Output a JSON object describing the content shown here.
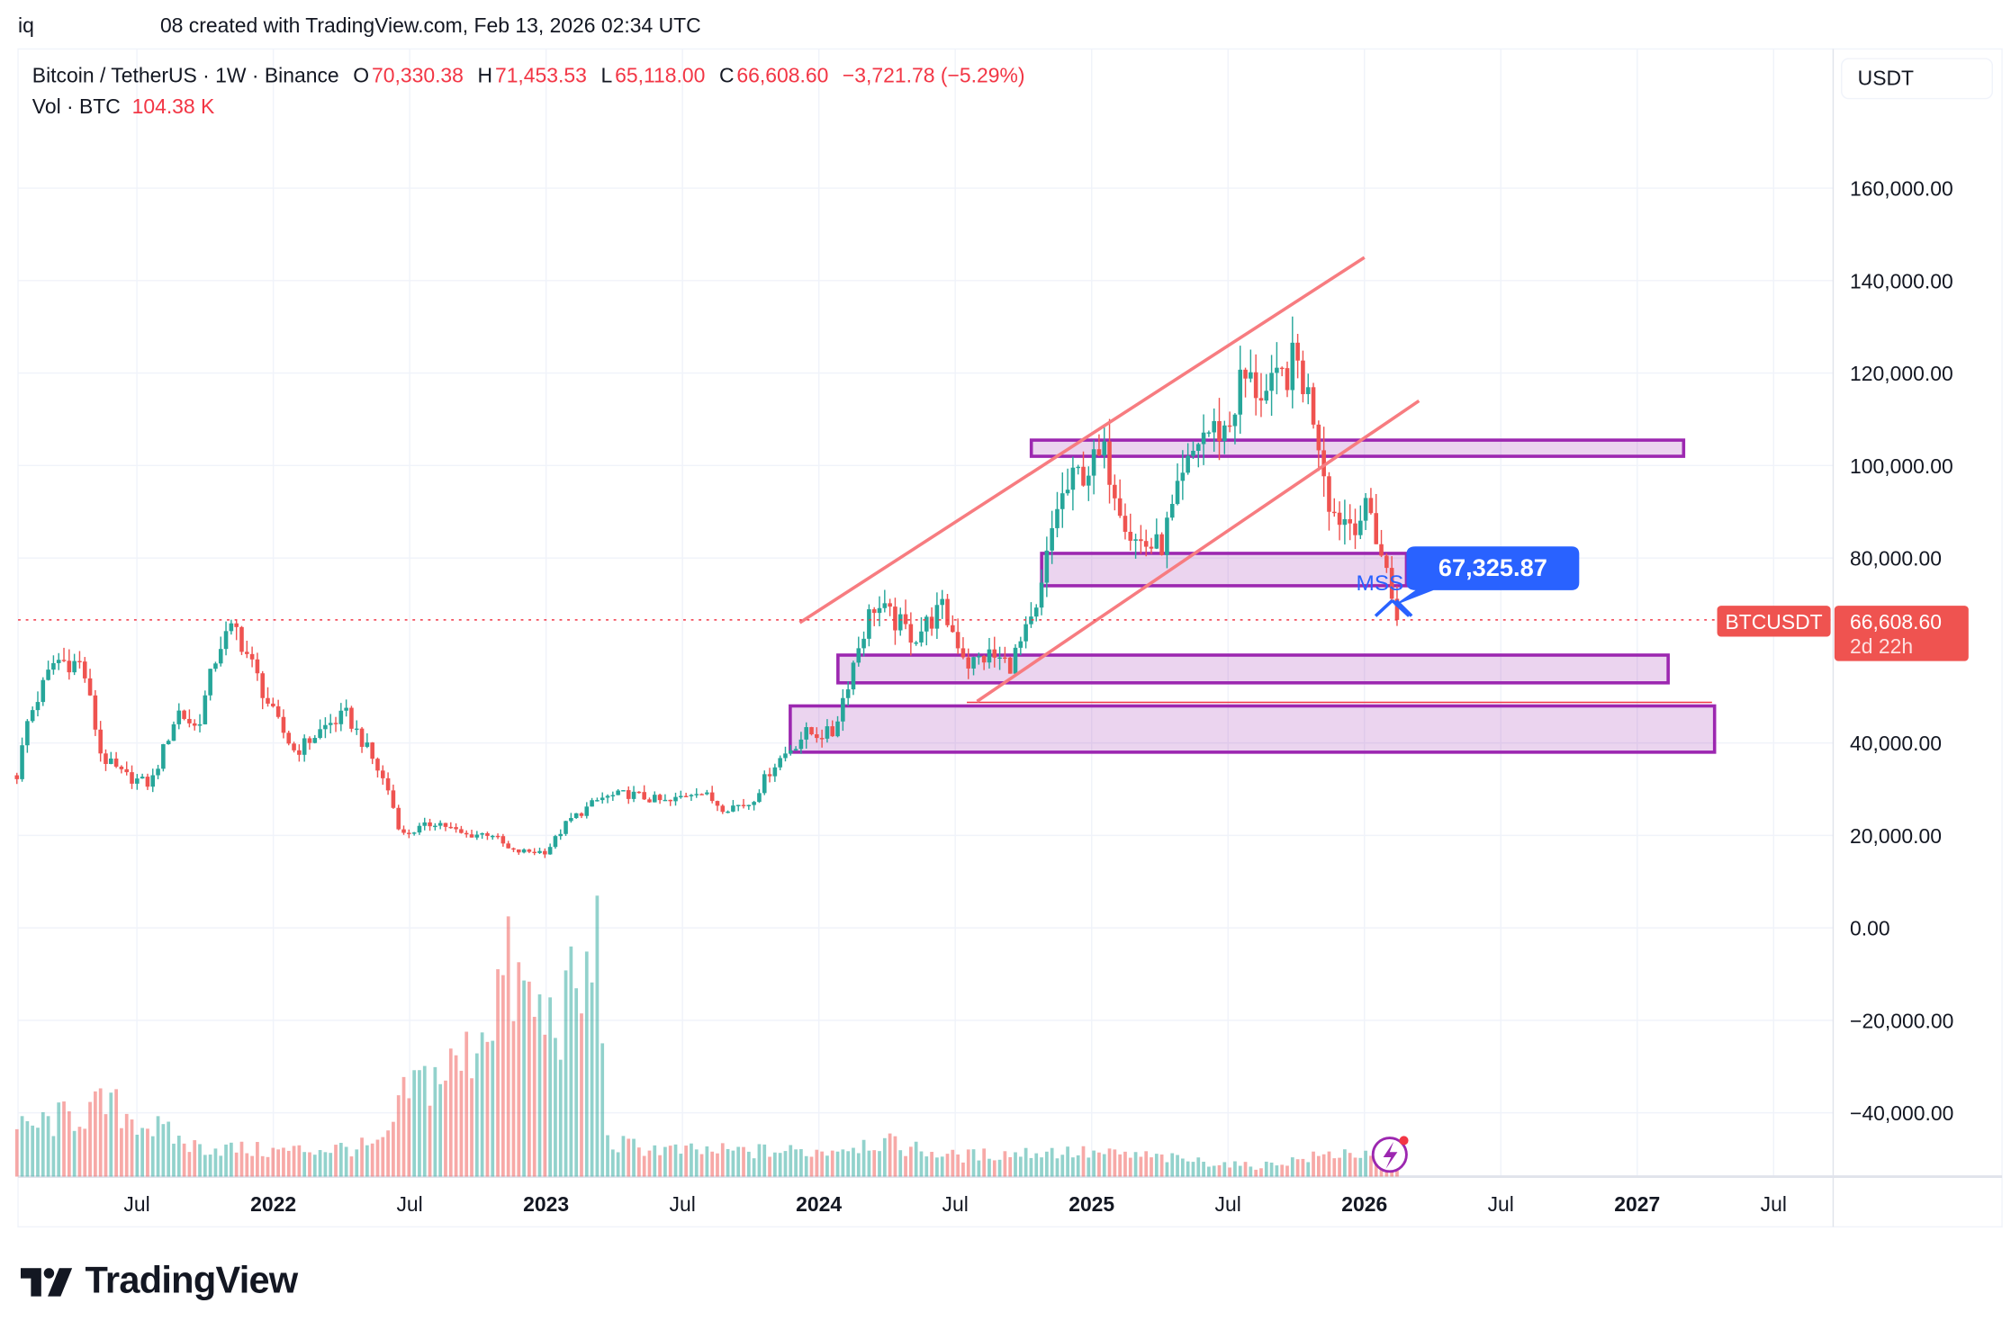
{
  "header": {
    "prefix": "iq",
    "created": "08 created with TradingView.com, Feb 13, 2026 02:34 UTC"
  },
  "legend": {
    "symbol": "Bitcoin / TetherUS · 1W · Binance",
    "open_label": "O",
    "open": "70,330.38",
    "high_label": "H",
    "high": "71,453.53",
    "low_label": "L",
    "low": "65,118.00",
    "close_label": "C",
    "close": "66,608.60",
    "change": "−3,721.78 (−5.29%)",
    "vol_label": "Vol · BTC",
    "vol": "104.38 K"
  },
  "currency_button": "USDT",
  "price_tag": {
    "symbol": "BTCUSDT",
    "price": "66,608.60",
    "countdown": "2d 22h"
  },
  "annotation": {
    "label": "67,325.87",
    "mss": "MSS"
  },
  "logo": "TradingView",
  "colors": {
    "up": "#26a69a",
    "down": "#ef5350",
    "zone": "#9c27b0",
    "channel": "#f77c80",
    "callout": "#2962ff"
  },
  "chart_data": {
    "type": "candlestick",
    "title": "Bitcoin / TetherUS · 1W · Binance",
    "y_ticks": [
      "160,000.00",
      "140,000.00",
      "120,000.00",
      "100,000.00",
      "80,000.00",
      "40,000.00",
      "20,000.00",
      "0.00",
      "−20,000.00",
      "−40,000.00"
    ],
    "y_tick_values": [
      160000,
      140000,
      120000,
      100000,
      80000,
      40000,
      20000,
      0,
      -20000,
      -40000
    ],
    "x_ticks": [
      "Jul",
      "2022",
      "Jul",
      "2023",
      "Jul",
      "2024",
      "Jul",
      "2025",
      "Jul",
      "2026",
      "Jul",
      "2027",
      "Jul"
    ],
    "x_tick_values": [
      2021.5,
      2022,
      2022.5,
      2023,
      2023.5,
      2024,
      2024.5,
      2025,
      2025.5,
      2026,
      2026.5,
      2027,
      2027.5
    ],
    "x_range": [
      2021.06,
      2027.75
    ],
    "y_range": [
      -52000,
      195000
    ],
    "last_price": 66608.6,
    "close_anchors": [
      [
        2021.06,
        33000
      ],
      [
        2021.1,
        45000
      ],
      [
        2021.2,
        58000
      ],
      [
        2021.3,
        57000
      ],
      [
        2021.37,
        37000
      ],
      [
        2021.45,
        33000
      ],
      [
        2021.55,
        31000
      ],
      [
        2021.65,
        47000
      ],
      [
        2021.72,
        43000
      ],
      [
        2021.8,
        61000
      ],
      [
        2021.86,
        65000
      ],
      [
        2021.92,
        57000
      ],
      [
        2022.0,
        46000
      ],
      [
        2022.08,
        38000
      ],
      [
        2022.2,
        44000
      ],
      [
        2022.27,
        46000
      ],
      [
        2022.35,
        38000
      ],
      [
        2022.42,
        30000
      ],
      [
        2022.47,
        20000
      ],
      [
        2022.6,
        23000
      ],
      [
        2022.7,
        20000
      ],
      [
        2022.8,
        20500
      ],
      [
        2022.87,
        16500
      ],
      [
        2023.0,
        16500
      ],
      [
        2023.08,
        23000
      ],
      [
        2023.2,
        28000
      ],
      [
        2023.3,
        29000
      ],
      [
        2023.45,
        27000
      ],
      [
        2023.55,
        30000
      ],
      [
        2023.65,
        26000
      ],
      [
        2023.75,
        27000
      ],
      [
        2023.83,
        35000
      ],
      [
        2023.95,
        42000
      ],
      [
        2024.05,
        42000
      ],
      [
        2024.15,
        62000
      ],
      [
        2024.2,
        70000
      ],
      [
        2024.35,
        63000
      ],
      [
        2024.45,
        69000
      ],
      [
        2024.55,
        57000
      ],
      [
        2024.62,
        59000
      ],
      [
        2024.7,
        57000
      ],
      [
        2024.8,
        68000
      ],
      [
        2024.87,
        91000
      ],
      [
        2024.95,
        98000
      ],
      [
        2025.05,
        102000
      ],
      [
        2025.15,
        84000
      ],
      [
        2025.25,
        82000
      ],
      [
        2025.32,
        94000
      ],
      [
        2025.4,
        107000
      ],
      [
        2025.5,
        108000
      ],
      [
        2025.55,
        119000
      ],
      [
        2025.65,
        115000
      ],
      [
        2025.75,
        123000
      ],
      [
        2025.82,
        110000
      ],
      [
        2025.88,
        90000
      ],
      [
        2025.95,
        88000
      ],
      [
        2026.02,
        90000
      ],
      [
        2026.08,
        77000
      ],
      [
        2026.12,
        66600
      ]
    ],
    "volume_anchors_relative": [
      [
        2021.06,
        0.18
      ],
      [
        2021.4,
        0.28
      ],
      [
        2021.7,
        0.12
      ],
      [
        2022.0,
        0.1
      ],
      [
        2022.4,
        0.12
      ],
      [
        2022.5,
        0.35
      ],
      [
        2022.7,
        0.45
      ],
      [
        2022.85,
        0.8
      ],
      [
        2023.0,
        0.6
      ],
      [
        2023.15,
        0.75
      ],
      [
        2023.2,
        1.0
      ],
      [
        2023.22,
        0.13
      ],
      [
        2023.5,
        0.1
      ],
      [
        2024.0,
        0.1
      ],
      [
        2024.2,
        0.14
      ],
      [
        2024.5,
        0.08
      ],
      [
        2024.85,
        0.1
      ],
      [
        2025.2,
        0.08
      ],
      [
        2025.6,
        0.04
      ],
      [
        2025.95,
        0.1
      ],
      [
        2026.12,
        0.03
      ]
    ],
    "zones": [
      [
        102000,
        105500
      ],
      [
        74000,
        81000
      ],
      [
        53000,
        59000
      ],
      [
        38000,
        48000
      ]
    ],
    "channel": [
      [
        [
          2023.93,
          66000
        ],
        [
          2026.0,
          145000
        ]
      ],
      [
        [
          2024.58,
          49000
        ],
        [
          2026.2,
          114000
        ]
      ]
    ]
  }
}
